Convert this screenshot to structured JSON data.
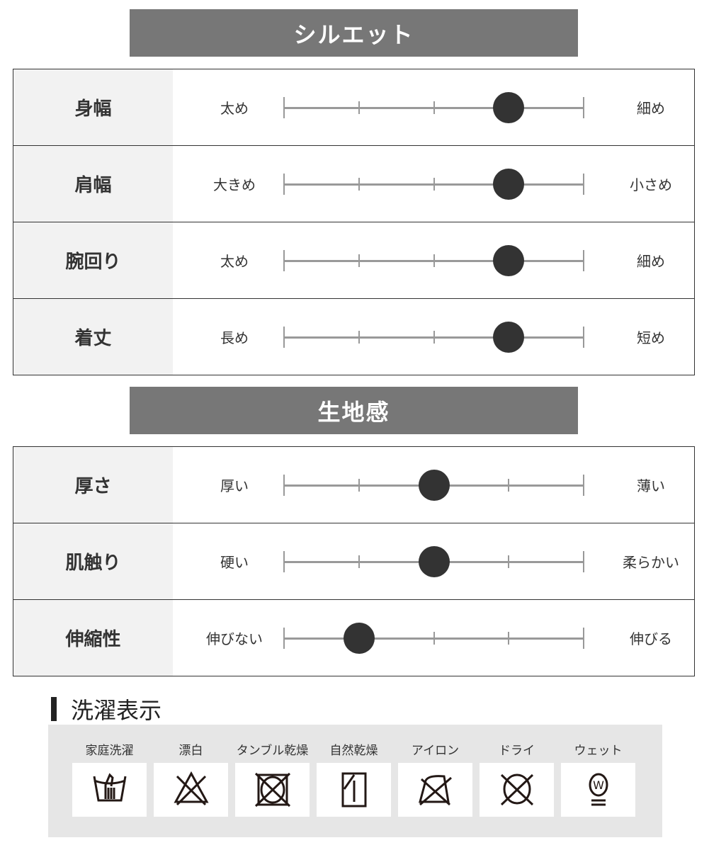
{
  "silhouette": {
    "title": "シルエット",
    "rows": [
      {
        "label": "身幅",
        "left": "太め",
        "right": "細め",
        "level": 4
      },
      {
        "label": "肩幅",
        "left": "大きめ",
        "right": "小さめ",
        "level": 4
      },
      {
        "label": "腕回り",
        "left": "太め",
        "right": "細め",
        "level": 4
      },
      {
        "label": "着丈",
        "left": "長め",
        "right": "短め",
        "level": 4
      }
    ]
  },
  "fabric": {
    "title": "生地感",
    "rows": [
      {
        "label": "厚さ",
        "left": "厚い",
        "right": "薄い",
        "level": 3
      },
      {
        "label": "肌触り",
        "left": "硬い",
        "right": "柔らかい",
        "level": 3
      },
      {
        "label": "伸縮性",
        "left": "伸びない",
        "right": "伸びる",
        "level": 2
      }
    ]
  },
  "scale_steps": 5,
  "care": {
    "title": "洗濯表示",
    "items": [
      {
        "label": "家庭洗濯",
        "icon": "hand-wash-icon"
      },
      {
        "label": "漂白",
        "icon": "no-bleach-icon"
      },
      {
        "label": "タンブル乾燥",
        "icon": "no-tumble-dry-icon"
      },
      {
        "label": "自然乾燥",
        "icon": "line-dry-shade-icon"
      },
      {
        "label": "アイロン",
        "icon": "no-iron-icon"
      },
      {
        "label": "ドライ",
        "icon": "no-dry-clean-icon"
      },
      {
        "label": "ウェット",
        "icon": "wet-clean-icon"
      }
    ]
  }
}
